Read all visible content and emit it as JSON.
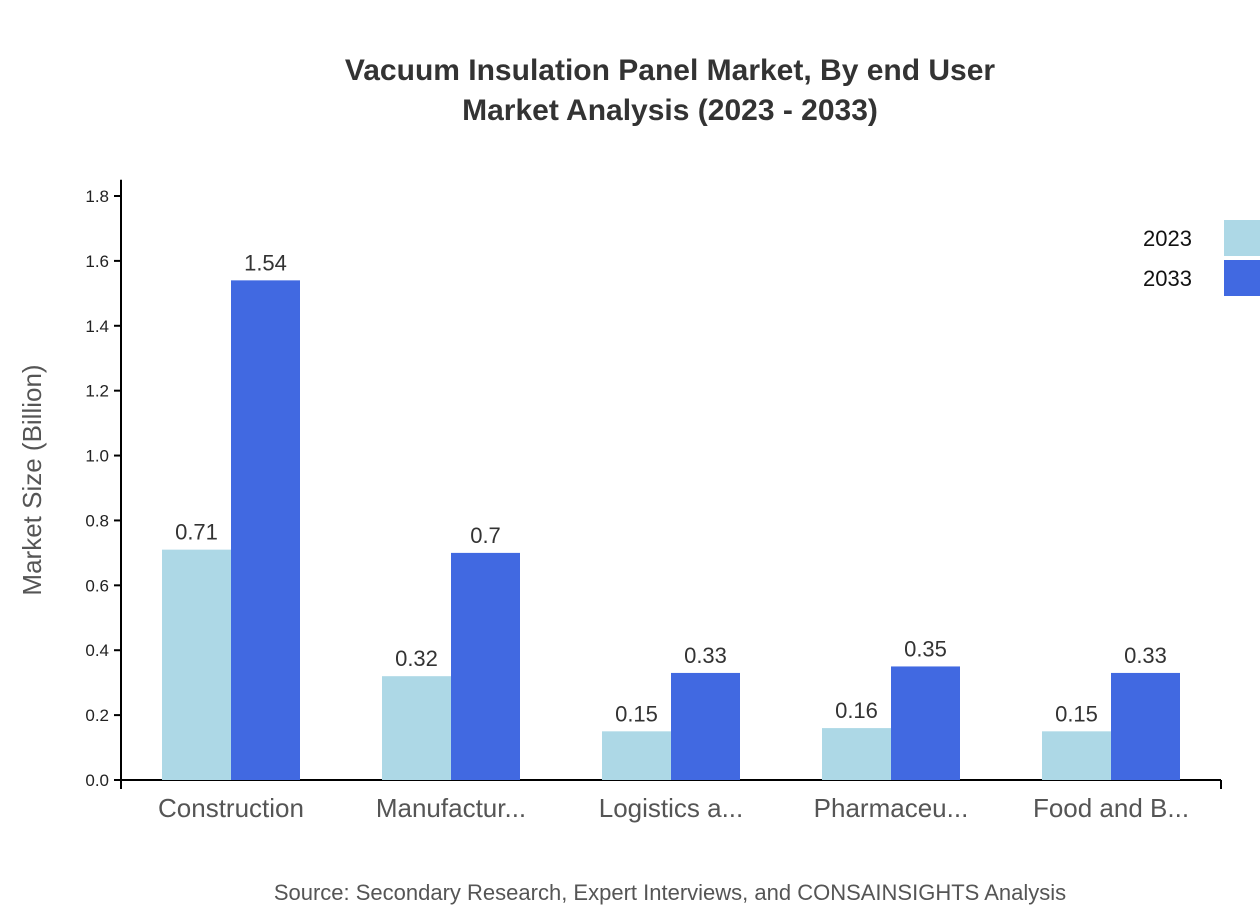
{
  "chart_data": {
    "type": "bar",
    "title": "Vacuum Insulation Panel Market, By end User",
    "subtitle": "Market Analysis (2023 - 2033)",
    "xlabel": "",
    "ylabel": "Market Size (Billion)",
    "ylim": [
      0,
      1.85
    ],
    "yticks": [
      "0.0",
      "0.2",
      "0.4",
      "0.6",
      "0.8",
      "1.0",
      "1.2",
      "1.4",
      "1.6",
      "1.8"
    ],
    "categories": [
      "Construction",
      "Manufactur...",
      "Logistics a...",
      "Pharmaceu...",
      "Food and B..."
    ],
    "series": [
      {
        "name": "2023",
        "color": "#add8e6",
        "values": [
          0.71,
          0.32,
          0.15,
          0.16,
          0.15
        ]
      },
      {
        "name": "2033",
        "color": "#4169e1",
        "values": [
          1.54,
          0.7,
          0.33,
          0.35,
          0.33
        ]
      }
    ],
    "grid": false,
    "legend": "top-right",
    "source": "Source: Secondary Research, Expert Interviews, and CONSAINSIGHTS Analysis"
  }
}
